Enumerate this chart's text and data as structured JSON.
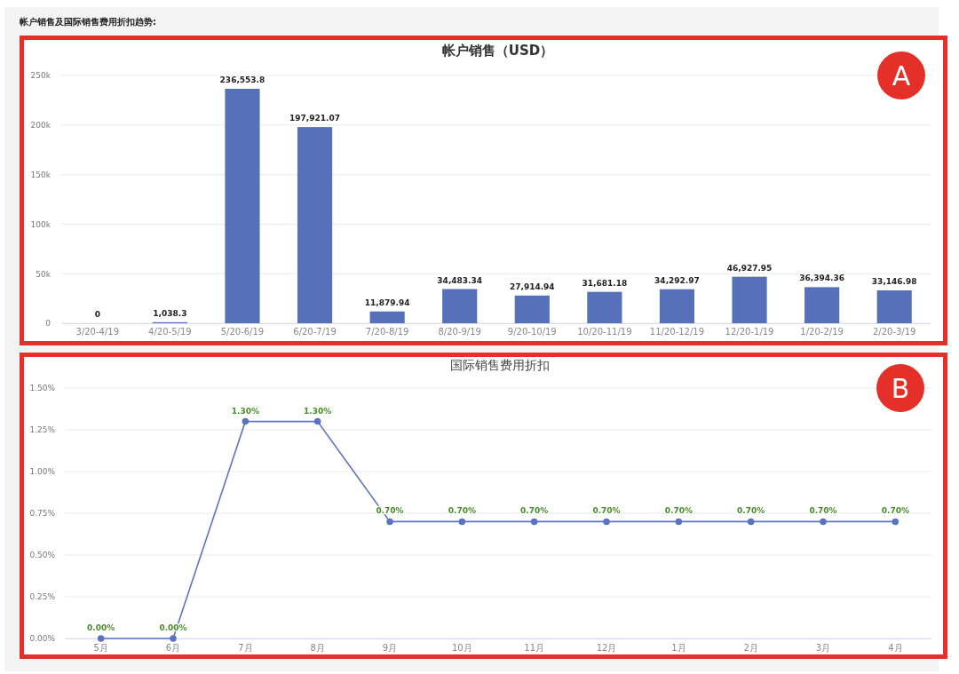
{
  "chart_data": [
    {
      "type": "bar",
      "title": "帐户销售（USD）",
      "categories": [
        "3/20-4/19",
        "4/20-5/19",
        "5/20-6/19",
        "6/20-7/19",
        "7/20-8/19",
        "8/20-9/19",
        "9/20-10/19",
        "10/20-11/19",
        "11/20-12/19",
        "12/20-1/19",
        "1/20-2/19",
        "2/20-3/19"
      ],
      "values": [
        0,
        1038.3,
        236553.8,
        197921.07,
        11879.94,
        34483.34,
        27914.94,
        31681.18,
        34292.97,
        46927.95,
        36394.36,
        33146.98
      ],
      "value_labels": [
        "0",
        "1,038.3",
        "236,553.8",
        "197,921.07",
        "11,879.94",
        "34,483.34",
        "27,914.94",
        "31,681.18",
        "34,292.97",
        "46,927.95",
        "36,394.36",
        "33,146.98"
      ],
      "color": "#5670b9",
      "ylim": [
        0,
        250000
      ],
      "yticks": [
        0,
        {
          "value": 50000,
          "label": "50k"
        },
        {
          "value": 100000,
          "label": "100k"
        },
        {
          "value": 150000,
          "label": "150k"
        },
        {
          "value": 200000,
          "label": "200k"
        },
        {
          "value": 250000,
          "label": "250k"
        }
      ],
      "grid": "y",
      "annotations": [
        "帐户销售及国际销售费用折扣趋势:",
        "A"
      ]
    },
    {
      "type": "line",
      "title": "国际销售费用折扣",
      "categories": [
        "5月",
        "6月",
        "7月",
        "8月",
        "9月",
        "10月",
        "11月",
        "12月",
        "1月",
        "2月",
        "3月",
        "4月"
      ],
      "values": [
        0,
        0,
        1.3,
        1.3,
        0.7,
        0.7,
        0.7,
        0.7,
        0.7,
        0.7,
        0.7,
        0.7
      ],
      "value_labels": [
        "0.00%",
        "0.00%",
        "1.30%",
        "1.30%",
        "0.70%",
        "0.70%",
        "0.70%",
        "0.70%",
        "0.70%",
        "0.70%",
        "0.70%",
        "0.70%"
      ],
      "color": "#5b72c2",
      "marker": "circle",
      "ylim": [
        0,
        1.5
      ],
      "yticks": [
        {
          "value": 0,
          "label": "0.00%"
        },
        {
          "value": 0.25,
          "label": "0.25%"
        },
        {
          "value": 0.5,
          "label": "0.50%"
        },
        {
          "value": 0.75,
          "label": "0.75%"
        },
        {
          "value": 1,
          "label": "1.00%"
        },
        {
          "value": 1.25,
          "label": "1.25%"
        },
        {
          "value": 1.5,
          "label": "1.50%"
        }
      ],
      "grid": "y",
      "annotations": [
        "B"
      ]
    }
  ]
}
